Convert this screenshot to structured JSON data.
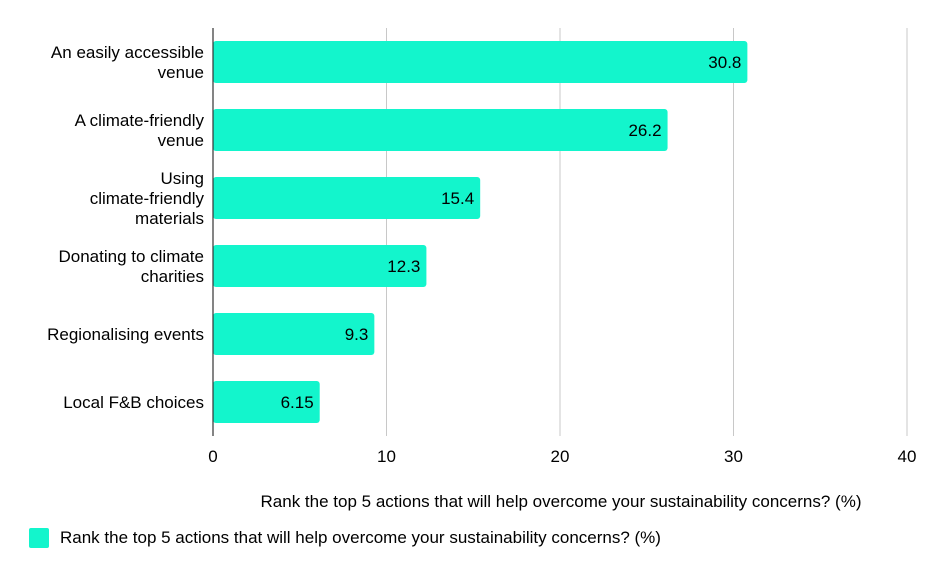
{
  "chart_data": {
    "type": "bar",
    "orientation": "horizontal",
    "categories": [
      [
        "An easily accessible",
        "venue"
      ],
      [
        "A climate-friendly",
        "venue"
      ],
      [
        "Using",
        "climate-friendly",
        "materials"
      ],
      [
        "Donating to climate",
        "charities"
      ],
      [
        "Regionalising events"
      ],
      [
        "Local F&B choices"
      ]
    ],
    "values": [
      30.8,
      26.2,
      15.4,
      12.3,
      9.3,
      6.15
    ],
    "value_labels": [
      "30.8",
      "26.2",
      "15.4",
      "12.3",
      "9.3",
      "6.15"
    ],
    "xlim": [
      0,
      40
    ],
    "xticks": [
      "0",
      "10",
      "20",
      "30",
      "40"
    ],
    "xlabel": "Rank the top 5 actions that will help overcome your sustainability concerns? (%)",
    "series": [
      {
        "name": "Rank the top 5 actions that will help overcome your sustainability concerns? (%)",
        "color": "#13f5cc"
      }
    ],
    "grid": true,
    "legend_position": "bottom-left",
    "colors": {
      "bar": "#13f5cc",
      "grid": "#c8c8c8",
      "axis": "#333333"
    }
  }
}
